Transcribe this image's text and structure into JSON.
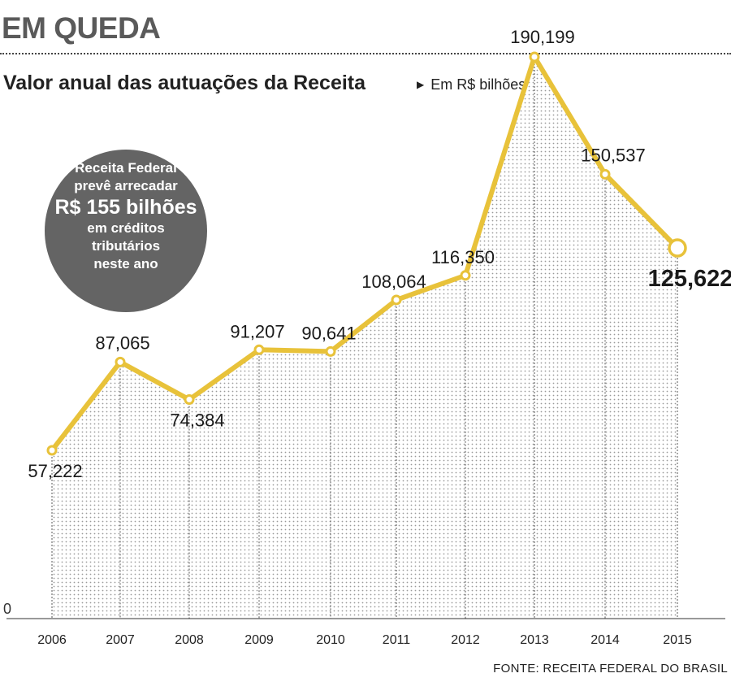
{
  "kicker": "EM QUEDA",
  "title": "Valor anual das autuações da Receita",
  "unit": "Em R$ bilhões",
  "bubble": {
    "lines": [
      "Receita Federal",
      "prevê arrecadar",
      "R$ 155 bilhões",
      "em créditos",
      "tributários",
      "neste ano"
    ]
  },
  "source": "FONTE: RECEITA FEDERAL DO BRASIL",
  "colors": {
    "line": "#e8c23a",
    "bubble": "#646464"
  },
  "chart_data": {
    "type": "line",
    "categories": [
      "2006",
      "2007",
      "2008",
      "2009",
      "2010",
      "2011",
      "2012",
      "2013",
      "2014",
      "2015"
    ],
    "values": [
      57.222,
      87.065,
      74.384,
      91.207,
      90.641,
      108.064,
      116.35,
      190.199,
      150.537,
      125.622
    ],
    "labels": [
      "57,222",
      "87,065",
      "74,384",
      "91,207",
      "90,641",
      "108,064",
      "116,350",
      "190,199",
      "150,537",
      "125,622"
    ],
    "y_tick": "0",
    "ylim": [
      0,
      200
    ],
    "highlight_last": true,
    "grid": false
  }
}
